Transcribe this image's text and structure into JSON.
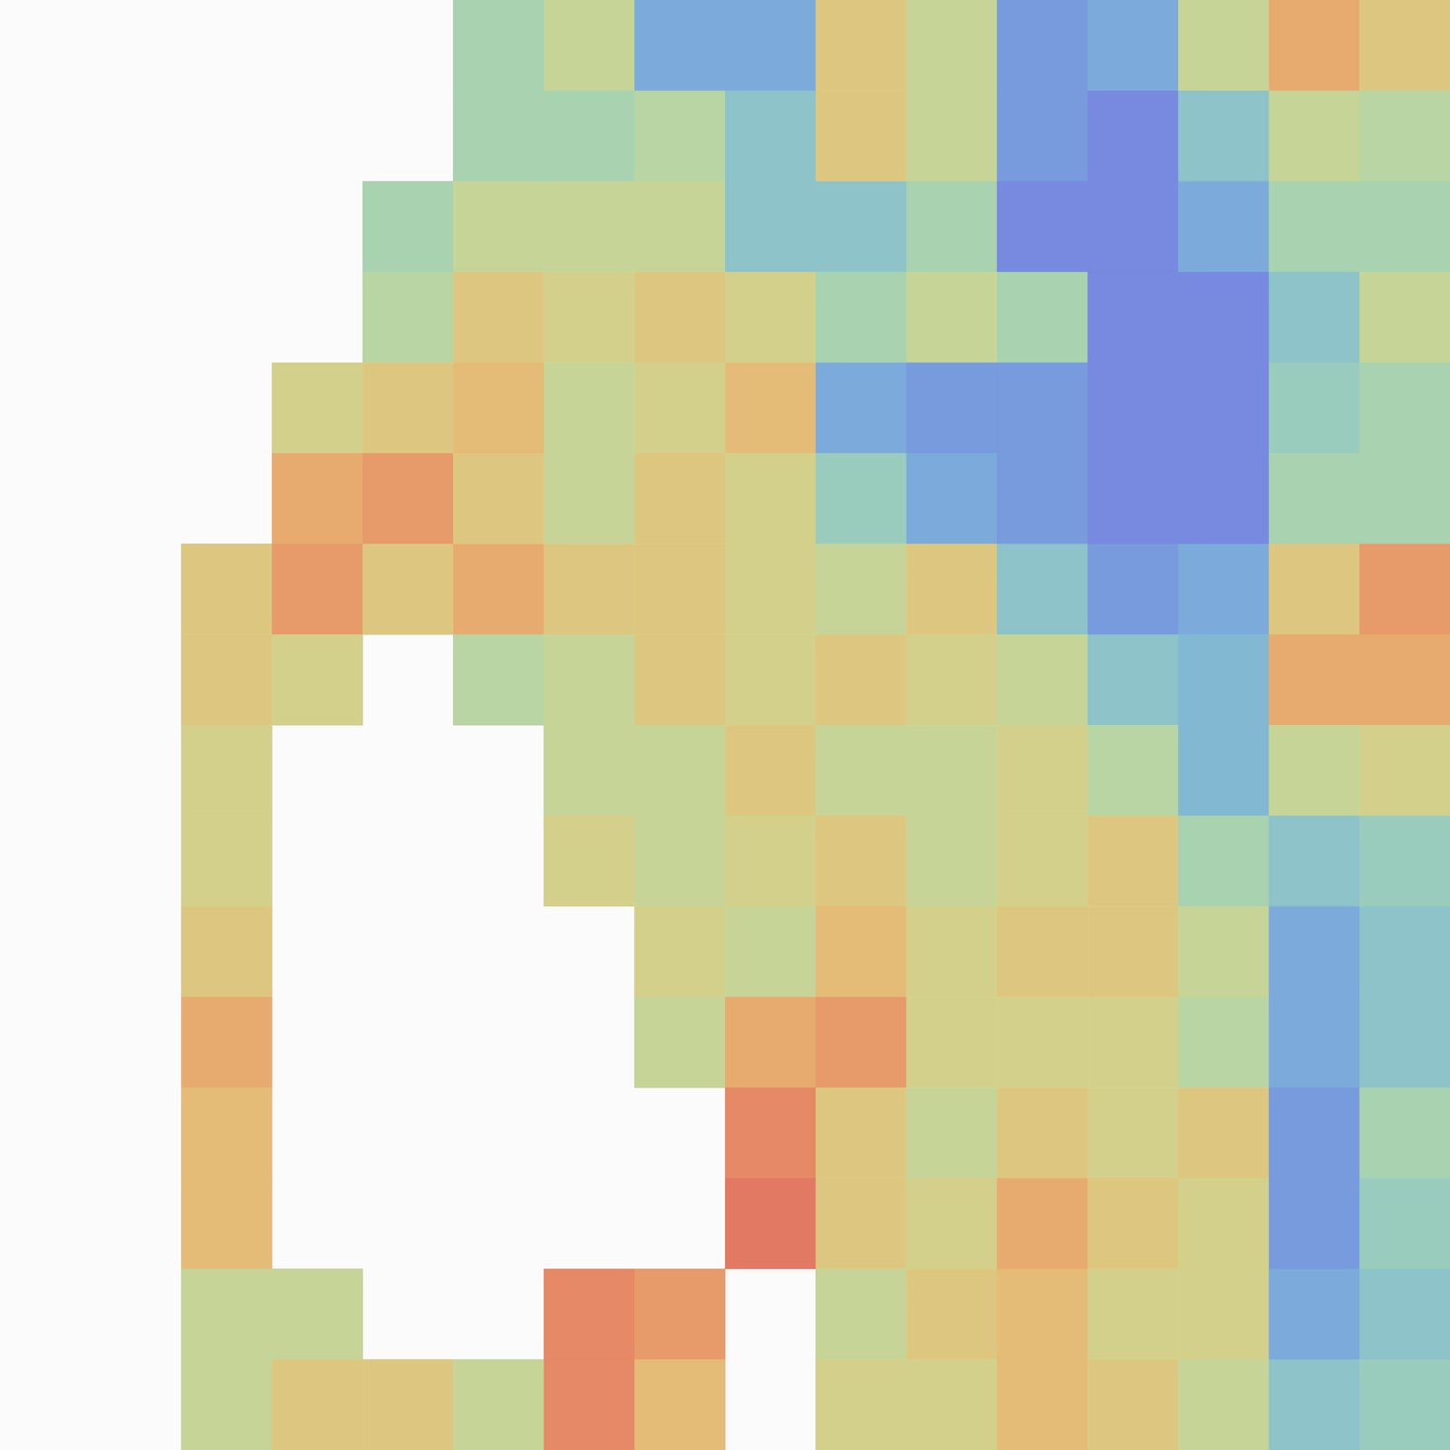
{
  "chart_data": {
    "type": "heatmap",
    "tick_labels": false,
    "zlim": [
      0,
      1
    ],
    "cells": [
      [
        null,
        null,
        null,
        null,
        null,
        0.4,
        0.5,
        0.2,
        0.2,
        0.6,
        0.5,
        0.15,
        0.2,
        0.5,
        0.7,
        0.6
      ],
      [
        null,
        null,
        null,
        null,
        null,
        0.4,
        0.4,
        0.45,
        0.3,
        0.6,
        0.5,
        0.15,
        0.1,
        0.3,
        0.5,
        0.45
      ],
      [
        null,
        null,
        null,
        null,
        0.4,
        0.5,
        0.5,
        0.5,
        0.3,
        0.3,
        0.4,
        0.1,
        0.1,
        0.2,
        0.4,
        0.4
      ],
      [
        null,
        null,
        null,
        null,
        0.45,
        0.6,
        0.55,
        0.6,
        0.55,
        0.4,
        0.5,
        0.4,
        0.1,
        0.1,
        0.3,
        0.5
      ],
      [
        null,
        null,
        null,
        0.55,
        0.6,
        0.65,
        0.5,
        0.55,
        0.65,
        0.2,
        0.15,
        0.15,
        0.1,
        0.1,
        0.35,
        0.4
      ],
      [
        null,
        null,
        null,
        0.7,
        0.75,
        0.6,
        0.5,
        0.6,
        0.55,
        0.35,
        0.2,
        0.15,
        0.1,
        0.1,
        0.4,
        0.4
      ],
      [
        null,
        null,
        0.6,
        0.75,
        0.6,
        0.7,
        0.6,
        0.6,
        0.55,
        0.5,
        0.6,
        0.3,
        0.15,
        0.2,
        0.6,
        0.75
      ],
      [
        null,
        null,
        0.6,
        0.55,
        null,
        0.45,
        0.5,
        0.6,
        0.55,
        0.6,
        0.55,
        0.5,
        0.3,
        0.25,
        0.7,
        0.7
      ],
      [
        null,
        null,
        0.55,
        null,
        null,
        null,
        0.5,
        0.5,
        0.6,
        0.5,
        0.5,
        0.55,
        0.45,
        0.25,
        0.5,
        0.55
      ],
      [
        null,
        null,
        0.55,
        null,
        null,
        null,
        0.55,
        0.5,
        0.55,
        0.6,
        0.5,
        0.55,
        0.6,
        0.4,
        0.3,
        0.35
      ],
      [
        null,
        null,
        0.6,
        null,
        null,
        null,
        null,
        0.55,
        0.5,
        0.65,
        0.55,
        0.6,
        0.6,
        0.5,
        0.2,
        0.3
      ],
      [
        null,
        null,
        0.7,
        null,
        null,
        null,
        null,
        0.5,
        0.7,
        0.75,
        0.55,
        0.55,
        0.55,
        0.45,
        0.2,
        0.3
      ],
      [
        null,
        null,
        0.65,
        null,
        null,
        null,
        null,
        null,
        0.8,
        0.6,
        0.5,
        0.6,
        0.55,
        0.6,
        0.15,
        0.4
      ],
      [
        null,
        null,
        0.65,
        null,
        null,
        null,
        null,
        null,
        0.85,
        0.6,
        0.55,
        0.7,
        0.6,
        0.55,
        0.15,
        0.35
      ],
      [
        null,
        null,
        0.5,
        0.5,
        null,
        null,
        0.8,
        0.75,
        null,
        0.5,
        0.6,
        0.65,
        0.55,
        0.55,
        0.2,
        0.3
      ],
      [
        null,
        null,
        0.5,
        0.6,
        0.6,
        0.5,
        0.8,
        0.65,
        null,
        0.55,
        0.55,
        0.65,
        0.6,
        0.5,
        0.3,
        0.35
      ]
    ]
  }
}
